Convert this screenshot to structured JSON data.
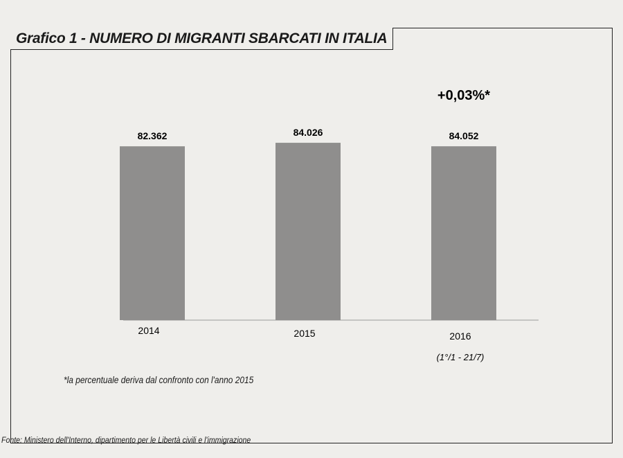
{
  "chart_data": {
    "type": "bar",
    "title": "Grafico 1 - NUMERO DI MIGRANTI SBARCATI IN ITALIA",
    "categories": [
      "2014",
      "2015",
      "2016"
    ],
    "category_sublabels": [
      "",
      "",
      "(1°/1 - 21/7)"
    ],
    "values": [
      82362,
      84026,
      84052
    ],
    "data_labels": [
      "82.362",
      "84.026",
      "84.052"
    ],
    "annotation": "+0,03%*",
    "footnote": "*la percentuale deriva dal confronto con l'anno 2015",
    "source": "Fonte: Ministero dell'Interno, dipartimento per le Libertà civili e l'immigrazione",
    "xlabel": "",
    "ylabel": "",
    "grid": false,
    "bar_color": "#8f8e8d"
  }
}
